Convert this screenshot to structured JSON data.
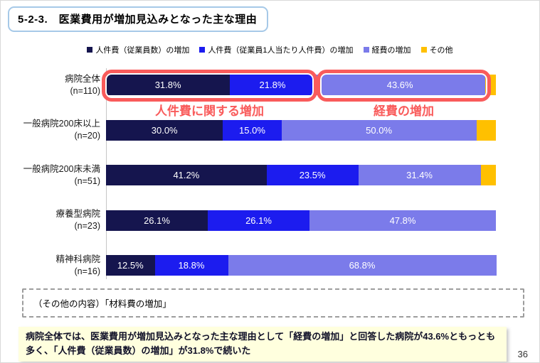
{
  "header": {
    "title": "5-2-3.　医業費用が増加見込みとなった主な理由"
  },
  "colors": {
    "labor_count": "#15154e",
    "labor_per_capita": "#1c1cef",
    "expense": "#7b7bea",
    "other": "#ffc000",
    "annotation_red": "#f95b5b",
    "title_border": "#a6c9e8",
    "summary_bg": "#ffffde"
  },
  "chart_data": {
    "type": "bar",
    "orientation": "horizontal",
    "stacked": true,
    "xlim": [
      0,
      100
    ],
    "grid": false,
    "legend_position": "top",
    "categories": [
      {
        "label": "病院全体",
        "n": "(n=110)"
      },
      {
        "label": "一般病院200床以上",
        "n": "(n=20)"
      },
      {
        "label": "一般病院200床未満",
        "n": "(n=51)"
      },
      {
        "label": "療養型病院",
        "n": "(n=23)"
      },
      {
        "label": "精神科病院",
        "n": "(n=16)"
      }
    ],
    "series": [
      {
        "name": "人件費（従業員数）の増加",
        "color": "#15154e",
        "values": [
          31.8,
          30.0,
          41.2,
          26.1,
          12.5
        ],
        "labels": [
          "31.8%",
          "30.0%",
          "41.2%",
          "26.1%",
          "12.5%"
        ]
      },
      {
        "name": "人件費（従業員1人当たり人件費）の増加",
        "color": "#1c1cef",
        "values": [
          21.8,
          15.0,
          23.5,
          26.1,
          18.8
        ],
        "labels": [
          "21.8%",
          "15.0%",
          "23.5%",
          "26.1%",
          "18.8%"
        ]
      },
      {
        "name": "経費の増加",
        "color": "#7b7bea",
        "values": [
          43.6,
          50.0,
          31.4,
          47.8,
          68.8
        ],
        "labels": [
          "43.6%",
          "50.0%",
          "31.4%",
          "47.8%",
          "68.8%"
        ]
      },
      {
        "name": "その他",
        "color": "#ffc000",
        "values": [
          2.8,
          5.0,
          3.9,
          0,
          0
        ],
        "labels": [
          "",
          "",
          "",
          "",
          ""
        ]
      }
    ]
  },
  "annotations": {
    "labor_group": "人件費に関する増加",
    "expense_group": "経費の増加"
  },
  "other_note": {
    "text": "（その他の内容）「材料費の増加」"
  },
  "summary": {
    "text": "病院全体では、医業費用が増加見込みとなった主な理由として「経費の増加」と回答した病院が43.6%ともっとも多く、「人件費（従業員数）の増加」が31.8%で続いた"
  },
  "page": {
    "number": "36"
  }
}
